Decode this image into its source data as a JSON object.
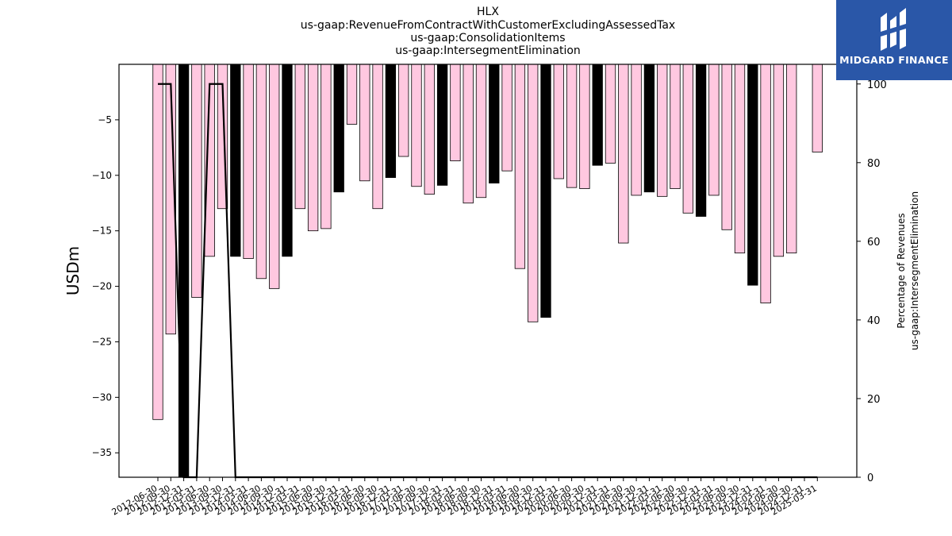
{
  "chart_data": {
    "type": "bar",
    "titles": [
      "HLX",
      "us-gaap:RevenueFromContractWithCustomerExcludingAssessedTax",
      "us-gaap:ConsolidationItems",
      "us-gaap:IntersegmentElimination"
    ],
    "ylabel": "USDm",
    "y2label": [
      "Percentage of Revenues",
      "us-gaap:IntersegmentElimination"
    ],
    "ylim": [
      -37.2,
      0
    ],
    "y2lim": [
      0,
      105
    ],
    "yticks": [
      -5,
      -10,
      -15,
      -20,
      -25,
      -30,
      -35
    ],
    "y2ticks": [
      0,
      20,
      40,
      60,
      80,
      100
    ],
    "colors": {
      "quarter_bar": "#ffc8e0",
      "annual_bar": "#000000",
      "line": "#000000"
    },
    "x_tick_labels": [
      "2012-06-30",
      "2012-09-30",
      "2012-12-31",
      "2013-03-31",
      "2013-06-30",
      "2013-09-30",
      "2013-12-31",
      "2014-03-31",
      "2014-06-30",
      "2014-09-30",
      "2014-12-31",
      "2015-03-31",
      "2015-06-30",
      "2015-09-30",
      "2015-12-31",
      "2016-03-31",
      "2016-06-30",
      "2016-09-30",
      "2016-12-31",
      "2017-03-31",
      "2017-06-30",
      "2017-09-30",
      "2017-12-31",
      "2018-03-31",
      "2018-06-30",
      "2018-09-30",
      "2018-12-31",
      "2019-03-31",
      "2019-06-30",
      "2019-09-30",
      "2019-12-31",
      "2020-03-31",
      "2020-06-30",
      "2020-09-30",
      "2020-12-31",
      "2021-03-31",
      "2021-06-30",
      "2021-09-30",
      "2021-12-31",
      "2022-03-31",
      "2022-06-30",
      "2022-09-30",
      "2022-12-31",
      "2023-03-31",
      "2023-06-30",
      "2023-09-30",
      "2023-12-31",
      "2024-03-31",
      "2024-06-30",
      "2024-09-30",
      "2024-12-31",
      "2025-03-31"
    ],
    "values": [
      -32.0,
      -24.3,
      -37.2,
      -21.0,
      -17.3,
      -13.0,
      -17.3,
      -17.5,
      -19.3,
      -20.2,
      -17.3,
      -13.0,
      -15.0,
      -14.8,
      -11.5,
      -5.4,
      -10.5,
      -13.0,
      -10.2,
      -8.3,
      -11.0,
      -11.7,
      -10.9,
      -8.7,
      -12.5,
      -12.0,
      -10.7,
      -9.6,
      -18.4,
      -23.2,
      -22.8,
      -10.3,
      -11.1,
      -11.2,
      -9.1,
      -8.9,
      -16.1,
      -11.8,
      -11.5,
      -11.9,
      -11.2,
      -13.4,
      -13.7,
      -11.8,
      -14.9,
      -17.0,
      -19.9,
      -21.5,
      -17.3,
      -17.0,
      null,
      -7.9
    ],
    "annual": [
      false,
      false,
      true,
      false,
      false,
      false,
      true,
      false,
      false,
      false,
      true,
      false,
      false,
      false,
      true,
      false,
      false,
      false,
      true,
      false,
      false,
      false,
      true,
      false,
      false,
      false,
      true,
      false,
      false,
      false,
      true,
      false,
      false,
      false,
      true,
      false,
      false,
      false,
      true,
      false,
      false,
      false,
      true,
      false,
      false,
      false,
      true,
      false,
      false,
      false,
      false,
      false
    ],
    "percentage": [
      100,
      100,
      0,
      0,
      100,
      100,
      0,
      0,
      0,
      0,
      0,
      0,
      0,
      0,
      0,
      0,
      0,
      0,
      0,
      0,
      0,
      0,
      0,
      0,
      0,
      0,
      0,
      0,
      0,
      0,
      0,
      0,
      0,
      0,
      0,
      0,
      0,
      0,
      0,
      0,
      0,
      0,
      0,
      0,
      0,
      0,
      0,
      0,
      0,
      0,
      0,
      0
    ]
  },
  "logo": {
    "text": "MIDGARD FINANCE"
  }
}
